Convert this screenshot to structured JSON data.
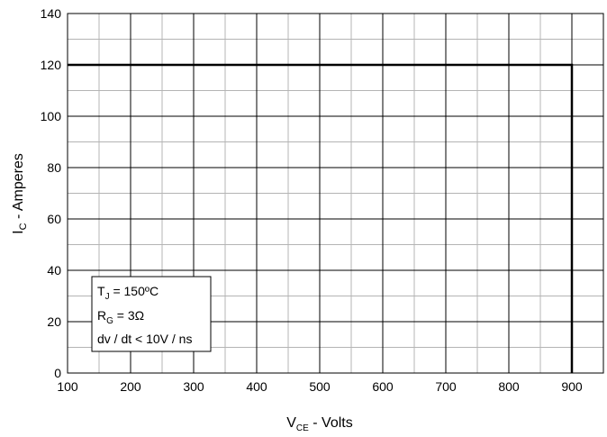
{
  "chart_data": {
    "type": "line",
    "xlabel": {
      "main": "V",
      "sub": "CE",
      "rest": " - Volts"
    },
    "ylabel": {
      "main": "I",
      "sub": "C",
      "rest": " - Amperes"
    },
    "xlim": [
      100,
      950
    ],
    "ylim": [
      0,
      140
    ],
    "x_ticks": [
      100,
      200,
      300,
      400,
      500,
      600,
      700,
      800,
      900
    ],
    "y_ticks": [
      0,
      20,
      40,
      60,
      80,
      100,
      120,
      140
    ],
    "grid": {
      "x_minor": 50,
      "y_minor": 10
    },
    "series": [
      {
        "x": [
          100,
          900,
          900
        ],
        "y": [
          120,
          120,
          0
        ],
        "color": "#000000"
      }
    ],
    "legend": {
      "placement": "bottom-left",
      "lines": [
        {
          "main": "T",
          "sub": "J",
          "rest": " = 150ºC"
        },
        {
          "main": "R",
          "sub": "G",
          "rest": " = 3Ω"
        },
        {
          "main": "dv / dt < 10V / ns",
          "sub": "",
          "rest": ""
        }
      ]
    }
  }
}
